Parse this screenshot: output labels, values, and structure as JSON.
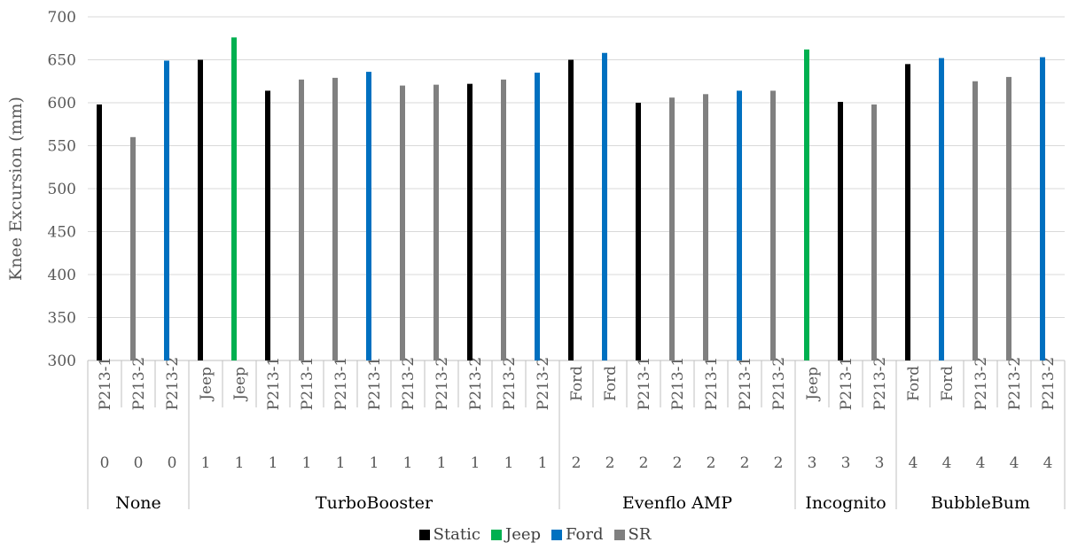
{
  "chart_data": {
    "type": "bar",
    "ylabel": "Knee Excursion (mm)",
    "ylim": [
      300,
      700
    ],
    "yticks": [
      300,
      350,
      400,
      450,
      500,
      550,
      600,
      650,
      700
    ],
    "grid": true,
    "legend_position": "bottom",
    "series": [
      {
        "name": "Static",
        "color": "#000000"
      },
      {
        "name": "Jeep",
        "color": "#00B050"
      },
      {
        "name": "Ford",
        "color": "#0070C0"
      },
      {
        "name": "SR",
        "color": "#808080"
      }
    ],
    "categories": [
      {
        "label": "P213-1",
        "level2": "0",
        "value": 598,
        "series": "Static"
      },
      {
        "label": "P213-2",
        "level2": "0",
        "value": 560,
        "series": "SR"
      },
      {
        "label": "P213-2",
        "level2": "0",
        "value": 649,
        "series": "Ford"
      },
      {
        "label": "Jeep",
        "level2": "1",
        "value": 650,
        "series": "Static"
      },
      {
        "label": "Jeep",
        "level2": "1",
        "value": 676,
        "series": "Jeep"
      },
      {
        "label": "P213-1",
        "level2": "1",
        "value": 614,
        "series": "Static"
      },
      {
        "label": "P213-1",
        "level2": "1",
        "value": 627,
        "series": "SR"
      },
      {
        "label": "P213-1",
        "level2": "1",
        "value": 629,
        "series": "SR"
      },
      {
        "label": "P213-1",
        "level2": "1",
        "value": 636,
        "series": "Ford"
      },
      {
        "label": "P213-2",
        "level2": "1",
        "value": 620,
        "series": "SR"
      },
      {
        "label": "P213-2",
        "level2": "1",
        "value": 621,
        "series": "SR"
      },
      {
        "label": "P213-2",
        "level2": "1",
        "value": 622,
        "series": "Static"
      },
      {
        "label": "P213-2",
        "level2": "1",
        "value": 627,
        "series": "SR"
      },
      {
        "label": "P213-2",
        "level2": "1",
        "value": 635,
        "series": "Ford"
      },
      {
        "label": "Ford",
        "level2": "2",
        "value": 650,
        "series": "Static"
      },
      {
        "label": "Ford",
        "level2": "2",
        "value": 658,
        "series": "Ford"
      },
      {
        "label": "P213-1",
        "level2": "2",
        "value": 600,
        "series": "Static"
      },
      {
        "label": "P213-1",
        "level2": "2",
        "value": 606,
        "series": "SR"
      },
      {
        "label": "P213-1",
        "level2": "2",
        "value": 610,
        "series": "SR"
      },
      {
        "label": "P213-1",
        "level2": "2",
        "value": 614,
        "series": "Ford"
      },
      {
        "label": "P213-2",
        "level2": "2",
        "value": 614,
        "series": "SR"
      },
      {
        "label": "Jeep",
        "level2": "3",
        "value": 662,
        "series": "Jeep"
      },
      {
        "label": "P213-1",
        "level2": "3",
        "value": 601,
        "series": "Static"
      },
      {
        "label": "P213-2",
        "level2": "3",
        "value": 598,
        "series": "SR"
      },
      {
        "label": "Ford",
        "level2": "4",
        "value": 645,
        "series": "Static"
      },
      {
        "label": "Ford",
        "level2": "4",
        "value": 652,
        "series": "Ford"
      },
      {
        "label": "P213-2",
        "level2": "4",
        "value": 625,
        "series": "SR"
      },
      {
        "label": "P213-2",
        "level2": "4",
        "value": 630,
        "series": "SR"
      },
      {
        "label": "P213-2",
        "level2": "4",
        "value": 653,
        "series": "Ford"
      }
    ],
    "groups": [
      {
        "label": "None",
        "start": 0,
        "end": 2
      },
      {
        "label": "TurboBooster",
        "start": 3,
        "end": 13
      },
      {
        "label": "Evenflo AMP",
        "start": 14,
        "end": 20
      },
      {
        "label": "Incognito",
        "start": 21,
        "end": 23
      },
      {
        "label": "BubbleBum",
        "start": 24,
        "end": 28
      }
    ]
  }
}
